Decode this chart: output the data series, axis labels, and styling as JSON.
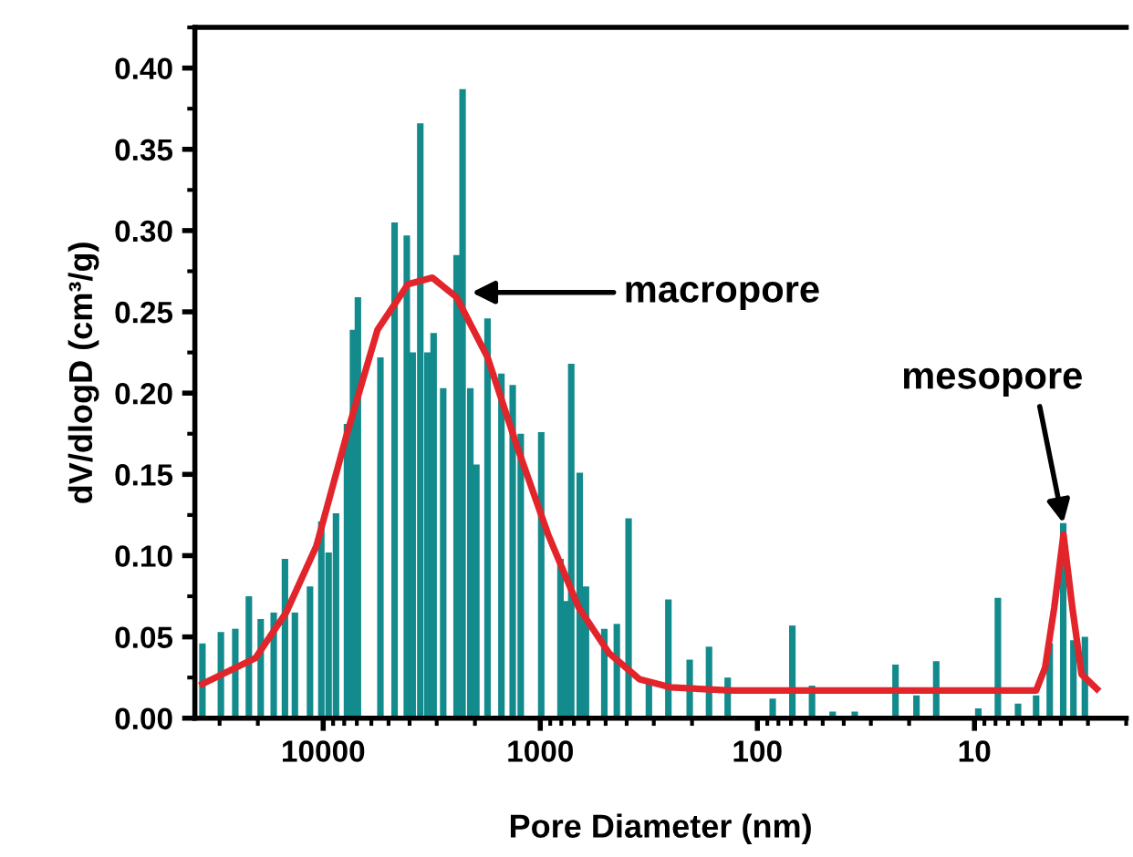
{
  "chart_data": {
    "type": "bar",
    "xlabel": "Pore Diameter (nm)",
    "ylabel": "dV/dlogD (cm³/g)",
    "log": "x",
    "grid": false,
    "xlim": [
      39000,
      2
    ],
    "xticks": [
      10000,
      1000,
      100,
      10
    ],
    "ylim": [
      0,
      0.425
    ],
    "yticks": [
      {
        "value": 0,
        "label": "0.00"
      },
      {
        "value": 0.05,
        "label": "0.05"
      },
      {
        "value": 0.1,
        "label": "0.10"
      },
      {
        "value": 0.15,
        "label": "0.15"
      },
      {
        "value": 0.2,
        "label": "0.20"
      },
      {
        "value": 0.25,
        "label": "0.25"
      },
      {
        "value": 0.3,
        "label": "0.30"
      },
      {
        "value": 0.35,
        "label": "0.35"
      },
      {
        "value": 0.4,
        "label": "0.40"
      }
    ],
    "series": [
      {
        "color": "#138a8c",
        "x": [
          36000,
          29600,
          25400,
          22000,
          19400,
          16900,
          15000,
          13500,
          11500,
          10200,
          9440,
          8730,
          7770,
          7290,
          6920,
          5450,
          4690,
          4120,
          3870,
          3570,
          3310,
          3100,
          2800,
          2430,
          2280,
          2100,
          1970,
          1750,
          1510,
          1340,
          1230,
          990,
          807,
          759,
          720,
          658,
          616,
          507,
          444,
          392,
          316,
          257,
          205,
          167,
          137,
          85,
          69,
          56,
          45,
          35.6,
          23.1,
          18.5,
          15.0,
          9.6,
          7.8,
          6.3,
          5.2,
          4.5,
          3.9,
          3.5,
          3.1
        ],
        "values": [
          0.046,
          0.053,
          0.055,
          0.075,
          0.061,
          0.065,
          0.098,
          0.065,
          0.081,
          0.121,
          0.102,
          0.126,
          0.181,
          0.239,
          0.259,
          0.222,
          0.305,
          0.297,
          0.225,
          0.366,
          0.225,
          0.237,
          0.203,
          0.285,
          0.387,
          0.203,
          0.156,
          0.246,
          0.212,
          0.205,
          0.175,
          0.176,
          0.098,
          0.072,
          0.218,
          0.151,
          0.081,
          0.055,
          0.058,
          0.123,
          0.022,
          0.073,
          0.036,
          0.044,
          0.025,
          0.012,
          0.057,
          0.02,
          0.004,
          0.004,
          0.033,
          0.014,
          0.035,
          0.006,
          0.074,
          0.009,
          0.014,
          0.046,
          0.12,
          0.048,
          0.05
        ]
      },
      {
        "type": "line",
        "color": "#e2242b",
        "x": [
          36000,
          20500,
          14800,
          10740,
          7770,
          5620,
          4070,
          3140,
          2430,
          1750,
          1270,
          920,
          665,
          482,
          349,
          252,
          132,
          50,
          10,
          5.2,
          4.73,
          4.29,
          3.89,
          3.54,
          3.21,
          2.73
        ],
        "values": [
          0.021,
          0.037,
          0.065,
          0.106,
          0.175,
          0.239,
          0.267,
          0.271,
          0.259,
          0.222,
          0.166,
          0.113,
          0.068,
          0.04,
          0.024,
          0.019,
          0.017,
          0.017,
          0.017,
          0.017,
          0.031,
          0.068,
          0.113,
          0.068,
          0.027,
          0.018
        ]
      }
    ],
    "annotations": [
      {
        "text": "macropore",
        "x": 2070,
        "y": 0.262
      },
      {
        "text": "mesopore",
        "x": 3.9,
        "y": 0.12
      }
    ]
  }
}
